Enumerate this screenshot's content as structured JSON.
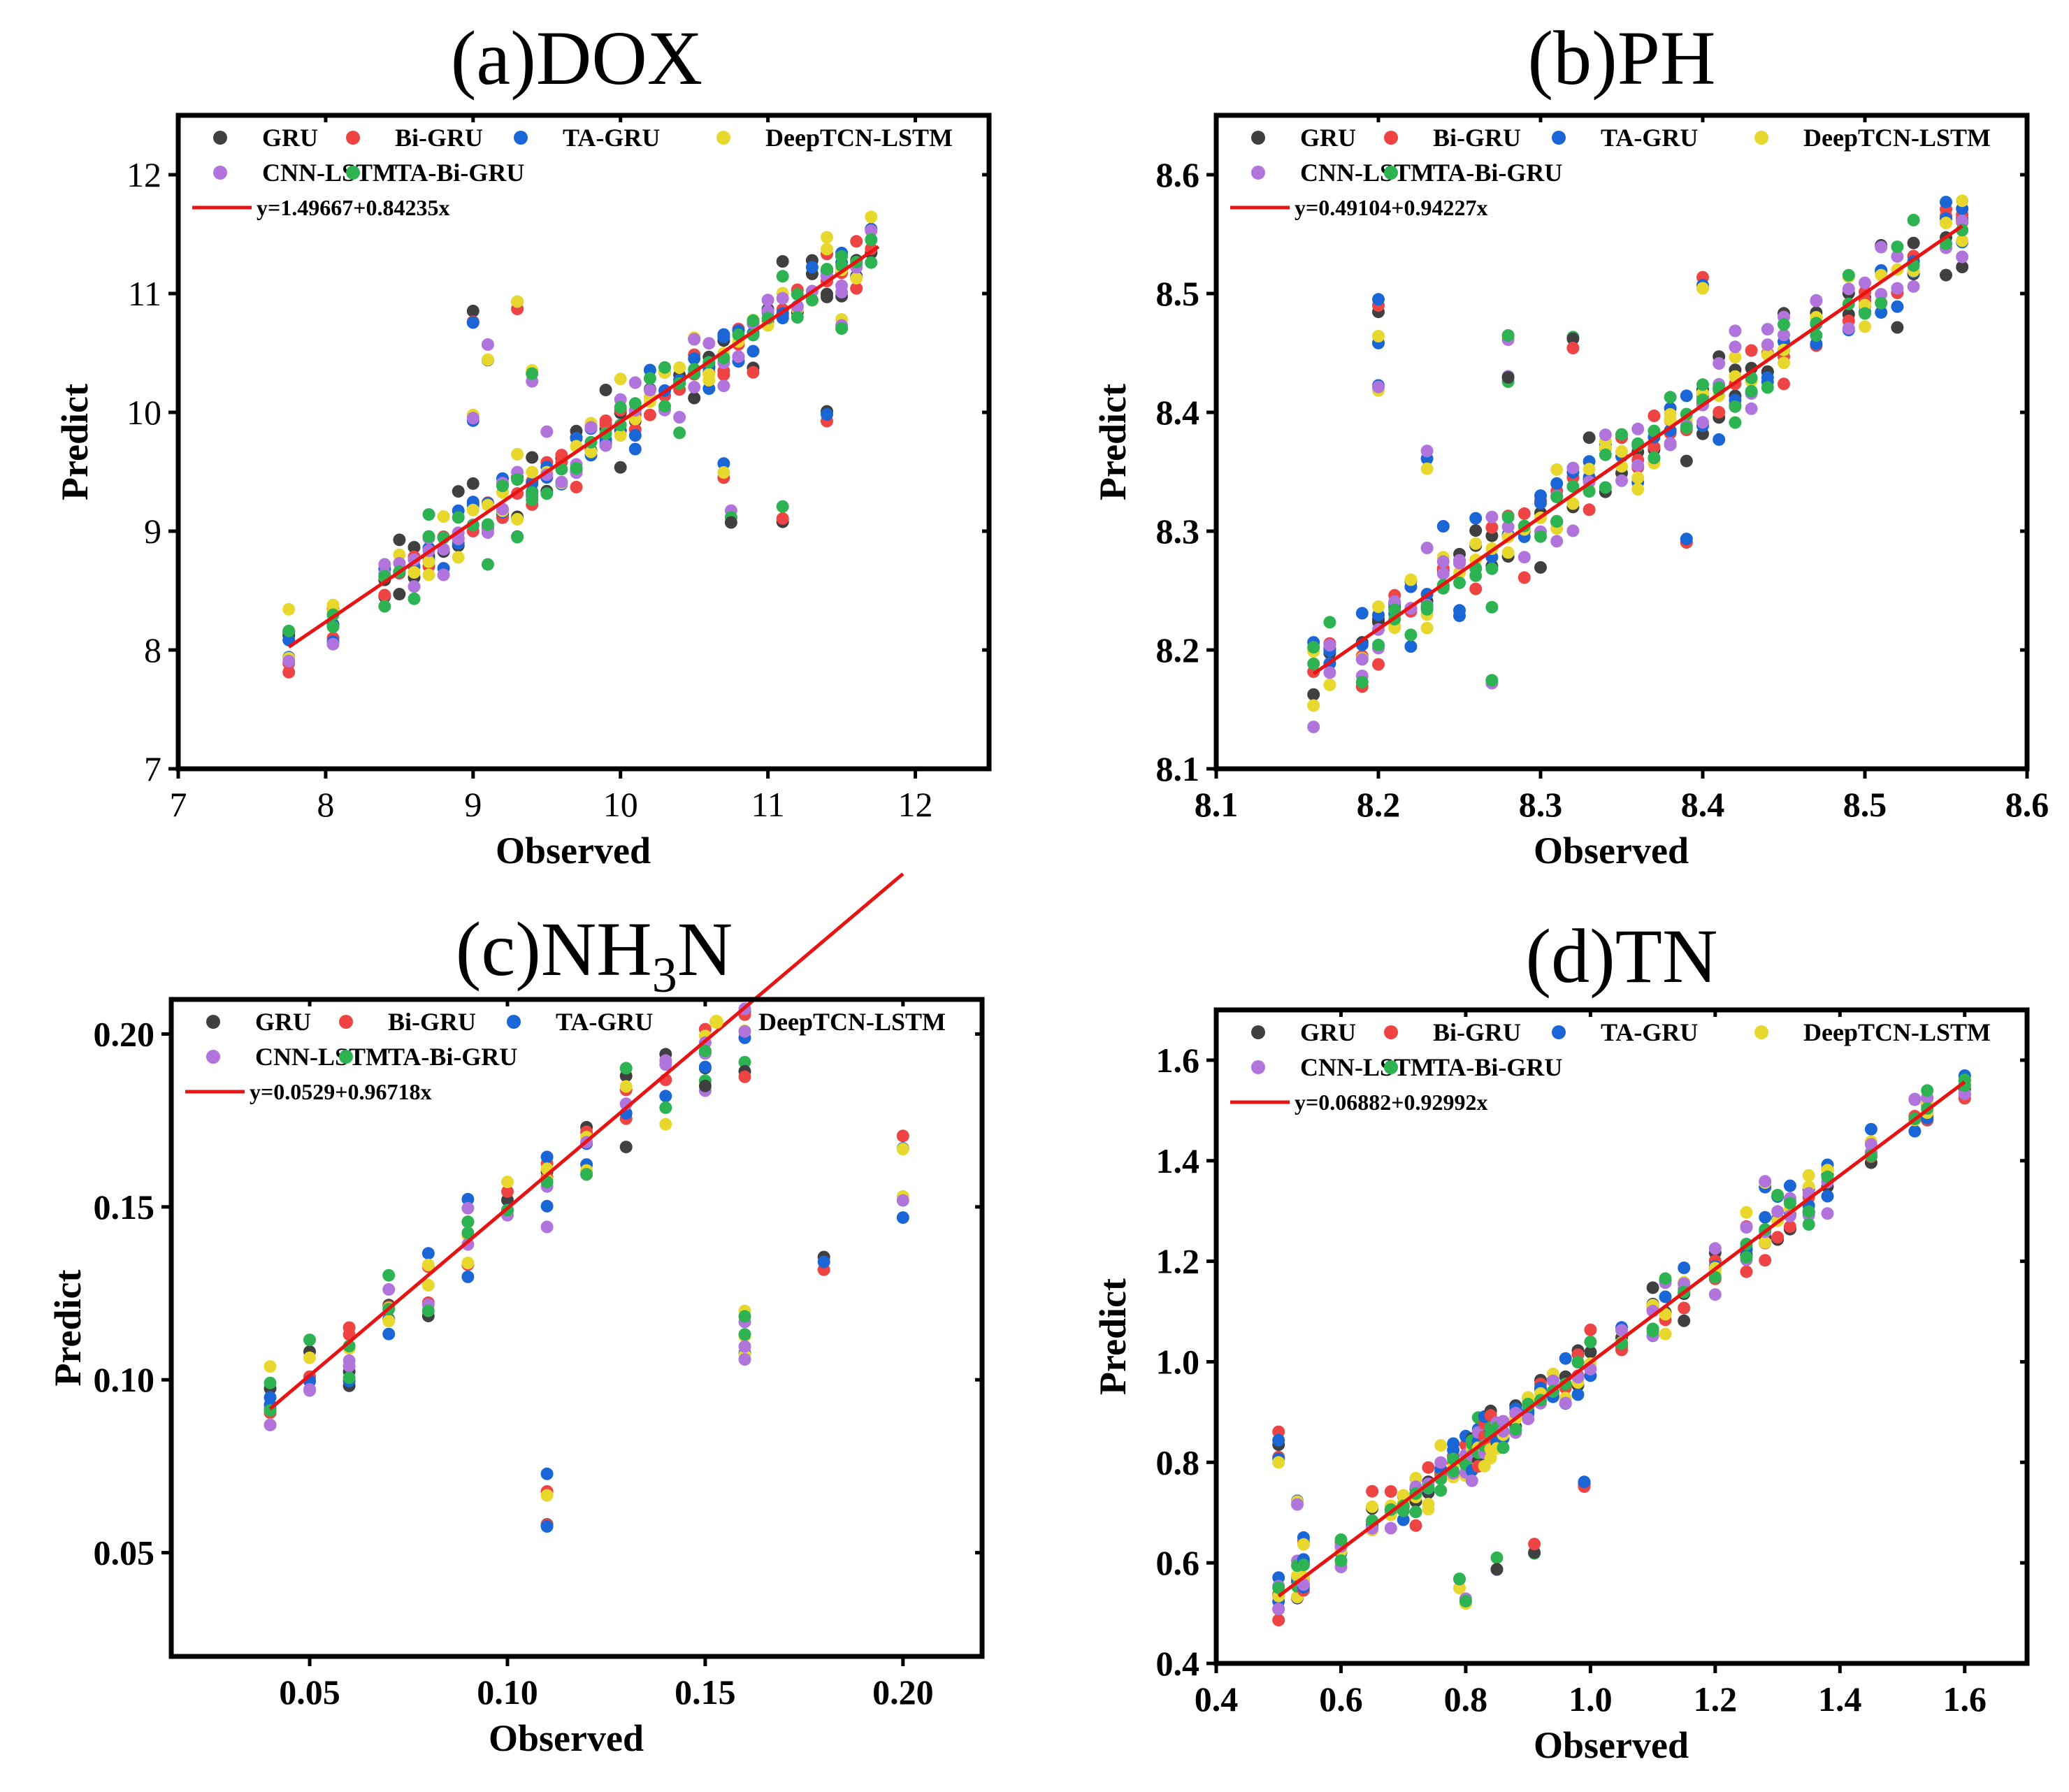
{
  "figure": {
    "seed": 7
  },
  "legend_series": [
    {
      "name": "GRU",
      "color": "#404040"
    },
    {
      "name": "Bi-GRU",
      "color": "#ee4444"
    },
    {
      "name": "TA-GRU",
      "color": "#1a66d6"
    },
    {
      "name": "DeepTCN-LSTM",
      "color": "#e8d82e"
    },
    {
      "name": "CNN-LSTM",
      "color": "#b074dc"
    },
    {
      "name": "TA-Bi-GRU",
      "color": "#2db352"
    }
  ],
  "fit_line_color": "#e81414",
  "chart_data": [
    {
      "type": "scatter",
      "title": "(a)DOX",
      "xlabel": "Observed",
      "ylabel": "Predict",
      "xlim": [
        7,
        12.5
      ],
      "ylim": [
        7,
        12.5
      ],
      "xticks": [
        "7",
        "8",
        "9",
        "10",
        "11",
        "12"
      ],
      "yticks": [
        "7",
        "8",
        "9",
        "10",
        "11",
        "12"
      ],
      "tick_bold": false,
      "fit": {
        "label": "y=1.49667+0.84235x",
        "intercept": 1.49667,
        "slope": 0.84235,
        "x_range": [
          7.75,
          11.75
        ]
      },
      "observed": [
        7.75,
        8.05,
        8.4,
        8.5,
        8.6,
        8.7,
        8.8,
        8.9,
        9.0,
        9.1,
        9.2,
        9.3,
        9.4,
        9.5,
        9.6,
        9.7,
        9.8,
        9.9,
        10.0,
        10.1,
        10.2,
        10.3,
        10.4,
        10.5,
        10.6,
        10.7,
        10.8,
        10.9,
        11.0,
        11.1,
        11.2,
        11.3,
        11.4,
        11.5,
        11.6,
        11.7
      ],
      "noise": 0.28,
      "outliers": [
        [
          9.0,
          10.8
        ],
        [
          9.3,
          10.9
        ],
        [
          9.1,
          10.5
        ],
        [
          9.4,
          10.3
        ],
        [
          10.75,
          9.1
        ],
        [
          11.1,
          9.15
        ],
        [
          11.4,
          10.0
        ],
        [
          10.7,
          9.5
        ],
        [
          9.0,
          9.9
        ],
        [
          11.5,
          10.7
        ]
      ]
    },
    {
      "type": "scatter",
      "title": "(b)PH",
      "xlabel": "Observed",
      "ylabel": "Predict",
      "xlim": [
        8.1,
        8.6
      ],
      "ylim": [
        8.1,
        8.65
      ],
      "xticks": [
        "8.1",
        "8.2",
        "8.3",
        "8.4",
        "8.5",
        "8.6"
      ],
      "yticks": [
        "8.1",
        "8.2",
        "8.3",
        "8.4",
        "8.5",
        "8.6"
      ],
      "tick_bold": true,
      "fit": {
        "label": "y=0.49104+0.94227x",
        "intercept": 0.49104,
        "slope": 0.94227,
        "x_range": [
          8.16,
          8.56
        ]
      },
      "observed": [
        8.16,
        8.17,
        8.19,
        8.2,
        8.21,
        8.22,
        8.23,
        8.24,
        8.25,
        8.26,
        8.27,
        8.28,
        8.29,
        8.3,
        8.31,
        8.32,
        8.33,
        8.34,
        8.35,
        8.36,
        8.37,
        8.38,
        8.39,
        8.4,
        8.41,
        8.42,
        8.43,
        8.44,
        8.45,
        8.47,
        8.49,
        8.5,
        8.51,
        8.52,
        8.53,
        8.55,
        8.56
      ],
      "noise": 0.035,
      "outliers": [
        [
          8.2,
          8.49
        ],
        [
          8.2,
          8.46
        ],
        [
          8.2,
          8.42
        ],
        [
          8.28,
          8.47
        ],
        [
          8.28,
          8.42
        ],
        [
          8.32,
          8.46
        ],
        [
          8.39,
          8.3
        ],
        [
          8.4,
          8.51
        ],
        [
          8.23,
          8.36
        ],
        [
          8.27,
          8.18
        ]
      ]
    },
    {
      "type": "scatter",
      "title": "(c)NH",
      "title_sub": "3",
      "title_tail": "N",
      "xlabel": "Observed",
      "ylabel": "Predict",
      "xlim": [
        0.015,
        0.22
      ],
      "ylim": [
        0.02,
        0.21
      ],
      "xticks": [
        "0.05",
        "0.10",
        "0.15",
        "0.20"
      ],
      "yticks": [
        "0.05",
        "0.10",
        "0.15",
        "0.20"
      ],
      "tick_bold": true,
      "fit": {
        "label": "y=0.0529+0.96718x",
        "intercept": 0.0529,
        "slope": 0.96718,
        "x_range": [
          0.04,
          0.2
        ]
      },
      "observed": [
        0.04,
        0.05,
        0.06,
        0.07,
        0.08,
        0.09,
        0.1,
        0.11,
        0.12,
        0.13,
        0.14,
        0.15,
        0.16,
        0.18,
        0.2
      ],
      "noise": 0.012,
      "outliers": [
        [
          0.11,
          0.06
        ],
        [
          0.11,
          0.07
        ],
        [
          0.16,
          0.105
        ],
        [
          0.16,
          0.11
        ],
        [
          0.15,
          0.185
        ],
        [
          0.16,
          0.19
        ],
        [
          0.18,
          0.135
        ],
        [
          0.2,
          0.17
        ],
        [
          0.2,
          0.15
        ],
        [
          0.16,
          0.118
        ]
      ]
    },
    {
      "type": "scatter",
      "title": "(d)TN",
      "xlabel": "Observed",
      "ylabel": "Predict",
      "xlim": [
        0.4,
        1.7
      ],
      "ylim": [
        0.4,
        1.7
      ],
      "xticks": [
        "0.4",
        "0.6",
        "0.8",
        "1.0",
        "1.2",
        "1.4",
        "1.6"
      ],
      "yticks": [
        "0.4",
        "0.6",
        "0.8",
        "1.0",
        "1.2",
        "1.4",
        "1.6"
      ],
      "tick_bold": true,
      "fit": {
        "label": "y=0.06882+0.92992x",
        "intercept": 0.06882,
        "slope": 0.92992,
        "x_range": [
          0.5,
          1.6
        ]
      },
      "observed": [
        0.5,
        0.53,
        0.54,
        0.6,
        0.65,
        0.68,
        0.7,
        0.72,
        0.74,
        0.76,
        0.78,
        0.8,
        0.81,
        0.82,
        0.83,
        0.84,
        0.85,
        0.86,
        0.88,
        0.9,
        0.92,
        0.94,
        0.96,
        0.98,
        1.0,
        1.05,
        1.1,
        1.12,
        1.15,
        1.2,
        1.25,
        1.28,
        1.3,
        1.32,
        1.35,
        1.38,
        1.45,
        1.52,
        1.54,
        1.6
      ],
      "noise": 0.05,
      "outliers": [
        [
          0.5,
          0.85
        ],
        [
          0.5,
          0.8
        ],
        [
          0.53,
          0.73
        ],
        [
          0.8,
          0.53
        ],
        [
          0.85,
          0.6
        ],
        [
          0.91,
          0.63
        ],
        [
          0.99,
          0.75
        ],
        [
          0.54,
          0.64
        ],
        [
          1.28,
          1.35
        ],
        [
          0.79,
          0.56
        ]
      ]
    }
  ]
}
